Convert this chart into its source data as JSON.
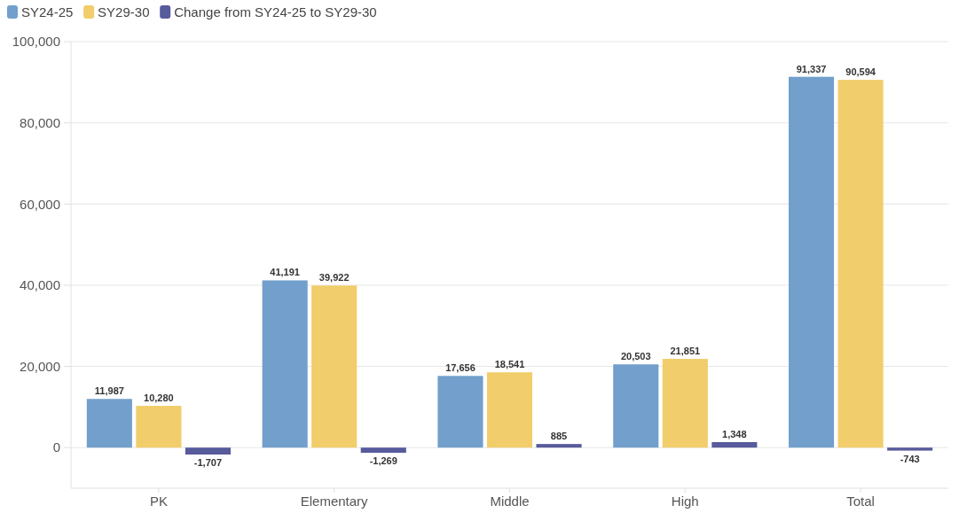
{
  "chart_data": {
    "type": "bar",
    "categories": [
      "PK",
      "Elementary",
      "Middle",
      "High",
      "Total"
    ],
    "series": [
      {
        "name": "SY24-25",
        "color": "#729fcb",
        "values": [
          11987,
          41191,
          17656,
          20503,
          91337
        ],
        "value_labels": [
          "11,987",
          "41,191",
          "17,656",
          "20,503",
          "91,337"
        ]
      },
      {
        "name": "SY29-30",
        "color": "#f1cd6b",
        "values": [
          10280,
          39922,
          18541,
          21851,
          90594
        ],
        "value_labels": [
          "10,280",
          "39,922",
          "18,541",
          "21,851",
          "90,594"
        ]
      },
      {
        "name": "Change from SY24-25 to SY29-30",
        "color": "#575a9b",
        "values": [
          -1707,
          -1269,
          885,
          1348,
          -743
        ],
        "value_labels": [
          "-1,707",
          "-1,269",
          "885",
          "1,348",
          "-743"
        ]
      }
    ],
    "ylim": [
      -10000,
      100000
    ],
    "yticks": [
      {
        "value": 0,
        "label": "0"
      },
      {
        "value": 20000,
        "label": "20,000"
      },
      {
        "value": 40000,
        "label": "40,000"
      },
      {
        "value": 60000,
        "label": "60,000"
      },
      {
        "value": 80000,
        "label": "80,000"
      },
      {
        "value": 100000,
        "label": "100,000"
      }
    ],
    "grid": "y",
    "legend": "top left"
  }
}
